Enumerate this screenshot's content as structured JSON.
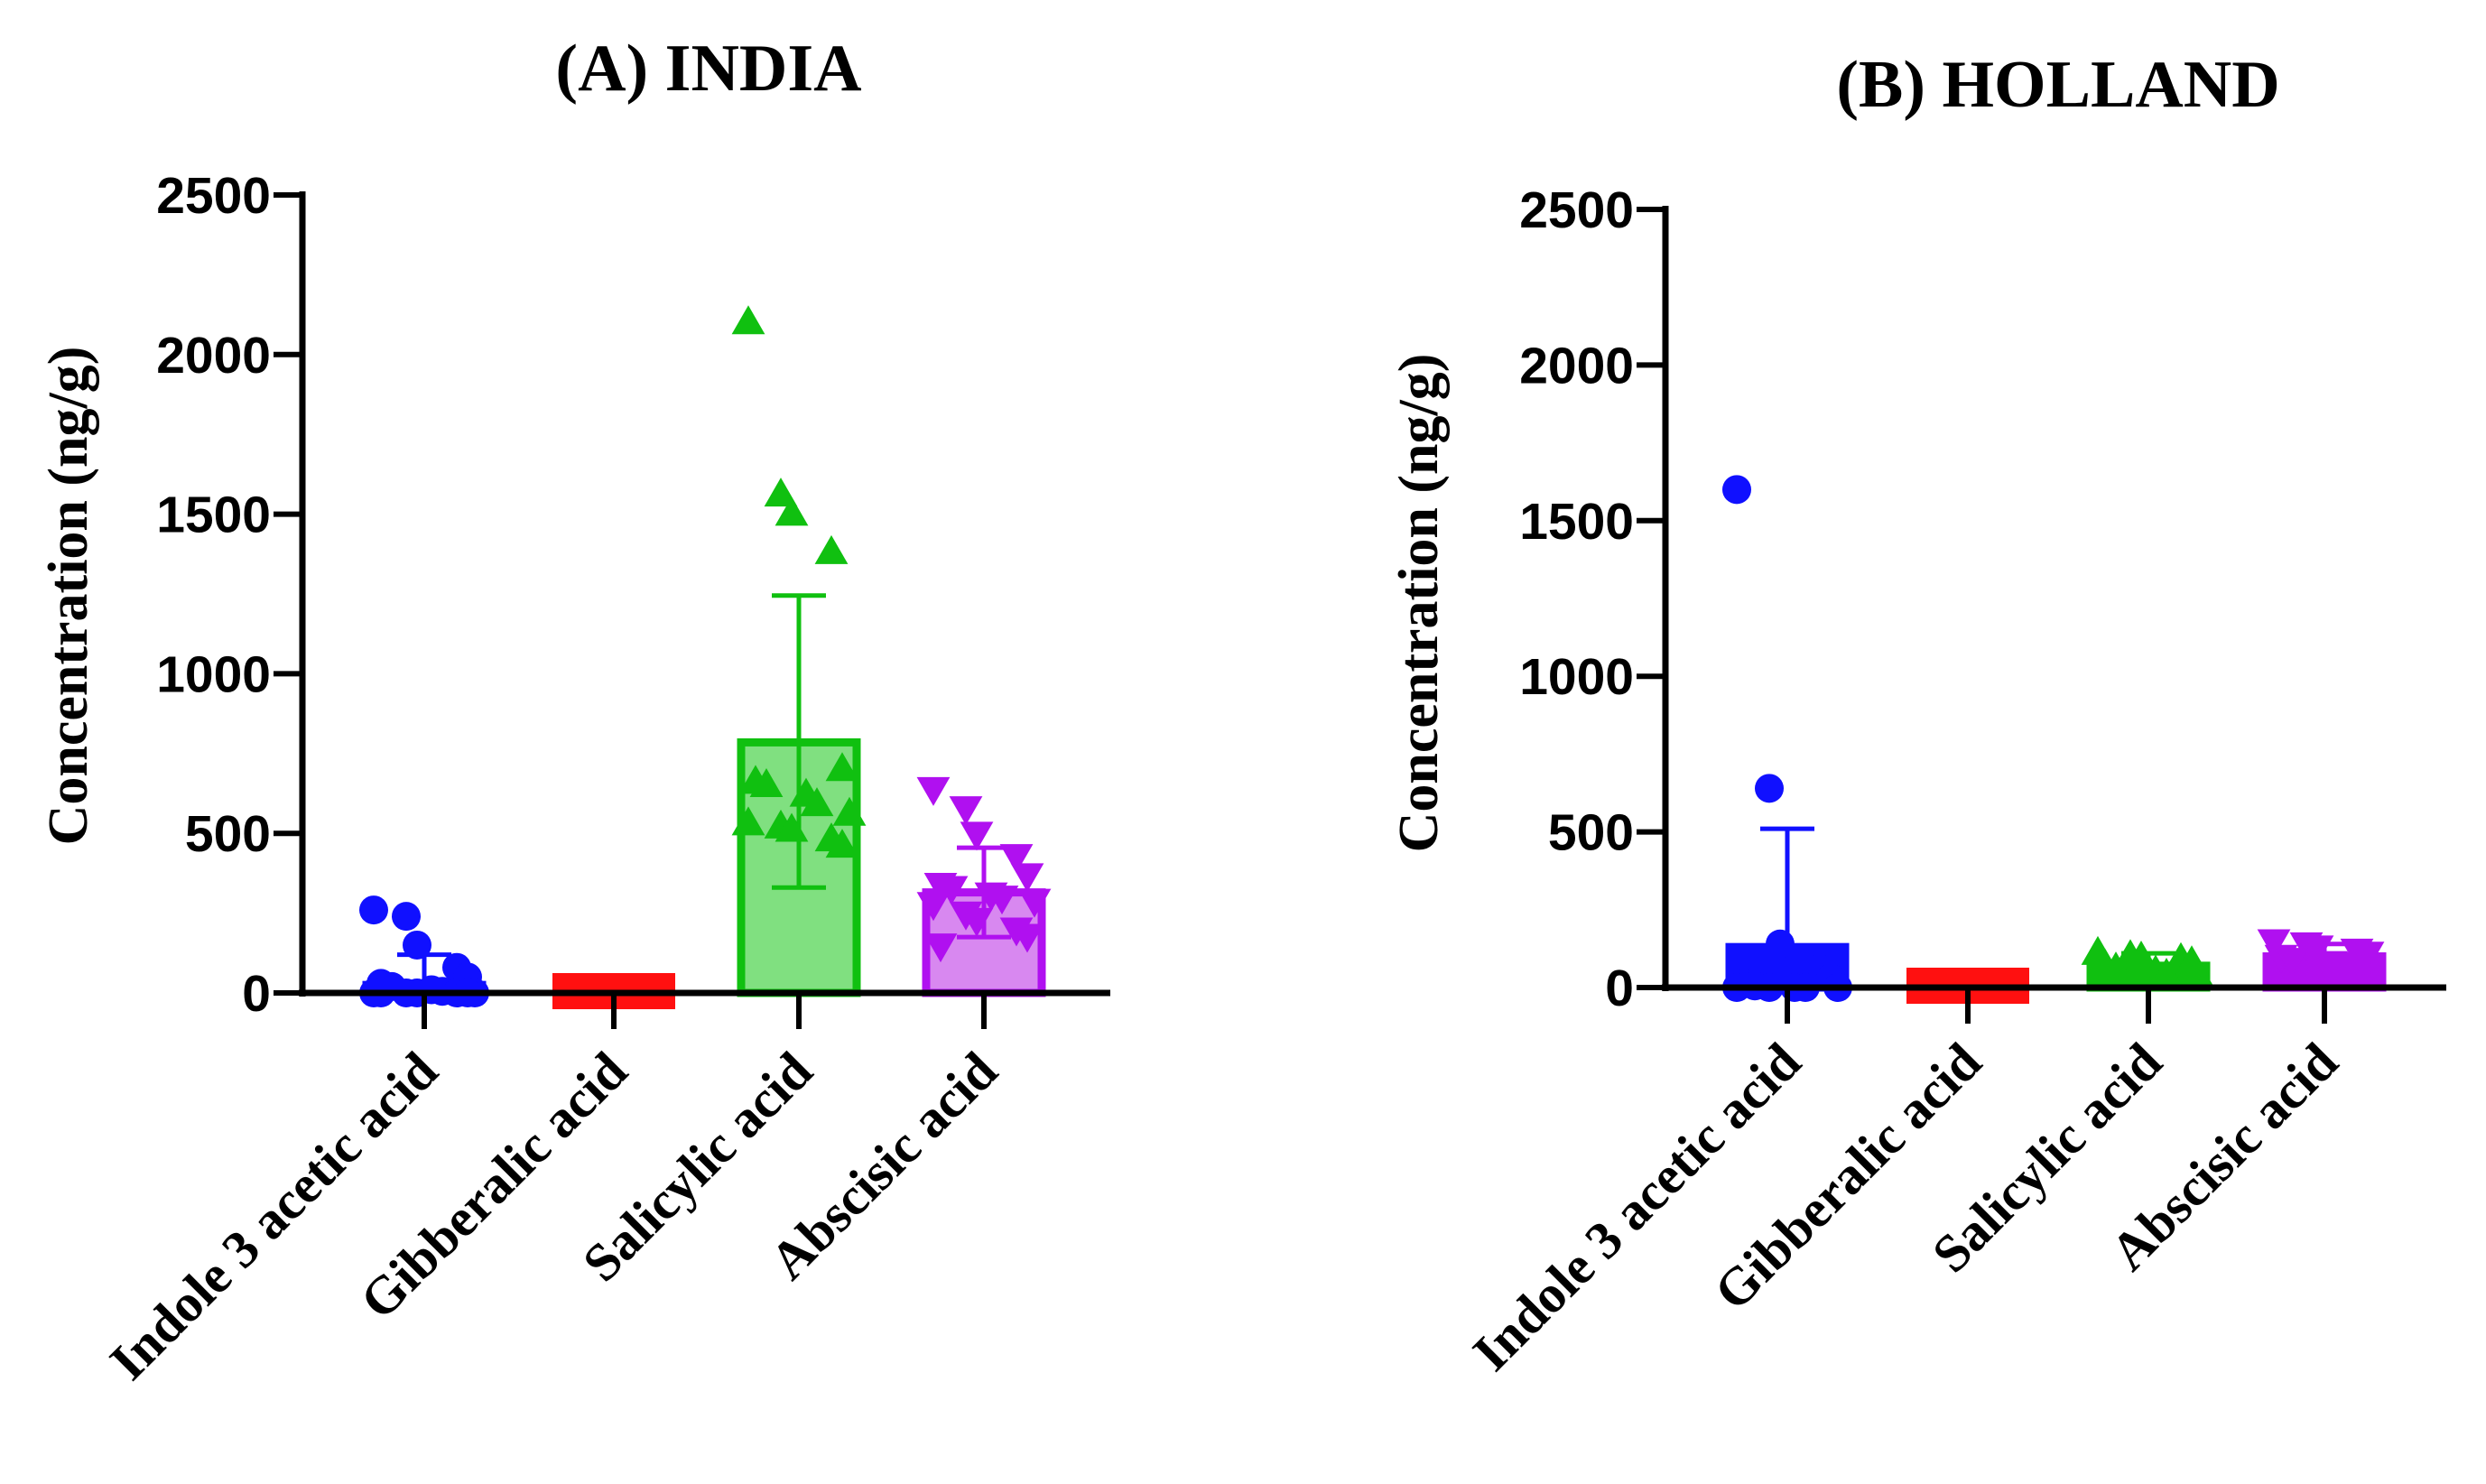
{
  "chart_data": [
    {
      "type": "bar",
      "title": "(A) INDIA",
      "ylabel": "Concentration (ng/g)",
      "ylim": [
        0,
        2500
      ],
      "yticks": [
        0,
        500,
        1000,
        1500,
        2000,
        2500
      ],
      "categories": [
        "Indole 3 acetic acid",
        "Gibberalic acid",
        "Salicylic acid",
        "Abscisic acid"
      ],
      "colors": [
        "#1010ff",
        "#ff1010",
        "#10c010",
        "#b010f0"
      ],
      "fills": [
        "#1010ff",
        "#ff1010",
        "#80e080",
        "#d888f0"
      ],
      "markers": [
        "circle",
        "square",
        "triangle-up",
        "triangle-down"
      ],
      "means": [
        25,
        15,
        785,
        315
      ],
      "error_upper": [
        120,
        25,
        1245,
        455
      ],
      "error_lower": [
        0,
        0,
        330,
        175
      ],
      "points": [
        [
          260,
          240,
          150,
          80,
          50,
          30,
          20,
          10,
          5,
          0,
          0,
          0,
          0,
          0,
          0,
          0
        ],
        [
          15,
          15,
          15,
          15,
          15,
          15,
          15,
          15
        ],
        [
          2100,
          1560,
          1500,
          1380,
          700,
          660,
          650,
          620,
          590,
          560,
          530,
          520,
          510,
          480,
          460
        ],
        [
          640,
          580,
          500,
          430,
          370,
          340,
          330,
          310,
          300,
          290,
          280,
          250,
          230,
          200,
          180,
          150
        ]
      ]
    },
    {
      "type": "bar",
      "title": "(B) HOLLAND",
      "ylabel": "Concentration (ng/g)",
      "ylim": [
        0,
        2500
      ],
      "yticks": [
        0,
        500,
        1000,
        1500,
        2000,
        2500
      ],
      "categories": [
        "Indole 3 acetic acid",
        "Gibberalic acid",
        "Salicylic acid",
        "Abscisic acid"
      ],
      "colors": [
        "#1010ff",
        "#ff1010",
        "#10c010",
        "#b010f0"
      ],
      "fills": [
        "#1010ff",
        "#ff1010",
        "#10c010",
        "#b010f0"
      ],
      "markers": [
        "circle",
        "square",
        "triangle-up",
        "triangle-down"
      ],
      "means": [
        130,
        15,
        70,
        100
      ],
      "error_upper": [
        510,
        25,
        110,
        140
      ],
      "error_lower": [
        0,
        0,
        30,
        60
      ],
      "points": [
        [
          1600,
          640,
          140,
          60,
          30,
          15,
          5,
          0,
          0,
          0,
          0,
          0
        ],
        [
          15,
          15,
          15,
          15,
          15,
          15,
          15,
          15
        ],
        [
          110,
          100,
          95,
          90,
          80,
          70,
          60,
          50,
          40,
          30
        ],
        [
          150,
          140,
          130,
          120,
          110,
          100,
          90,
          80,
          70
        ]
      ]
    }
  ]
}
